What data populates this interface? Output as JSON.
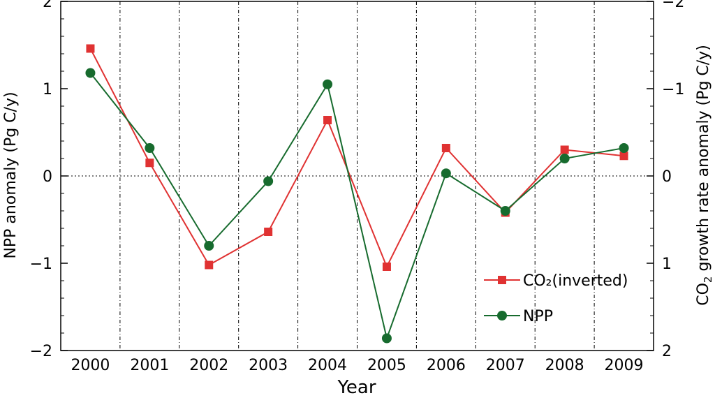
{
  "chart_data": {
    "type": "line",
    "xlabel": "Year",
    "ylabel_left": "NPP anomaly (Pg C/y)",
    "ylabel_right_prefix": "CO",
    "ylabel_right_sub": "2",
    "ylabel_right_suffix": " growth rate anomaly (Pg C/y)",
    "categories": [
      "2000",
      "2001",
      "2002",
      "2003",
      "2004",
      "2005",
      "2006",
      "2007",
      "2008",
      "2009"
    ],
    "ylim_left": [
      -2,
      2
    ],
    "yticks_left": [
      "2",
      "1",
      "0",
      "−1",
      "−2"
    ],
    "ylim_right_inverted": [
      2,
      -2
    ],
    "yticks_right": [
      "−2",
      "−1",
      "0",
      "1",
      "2"
    ],
    "grid": "dash-dot vertical lines between years; dotted horizontal line at 0",
    "legend_position": "bottom-right",
    "series": [
      {
        "name": "CO₂(inverted)",
        "color": "#e03232",
        "marker": "square",
        "values": [
          1.46,
          0.15,
          -1.02,
          -0.64,
          0.64,
          -1.04,
          0.32,
          -0.42,
          0.3,
          0.23
        ]
      },
      {
        "name": "NPP",
        "color": "#176b2e",
        "marker": "circle",
        "values": [
          1.18,
          0.32,
          -0.8,
          -0.06,
          1.05,
          -1.86,
          0.03,
          -0.4,
          0.2,
          0.32
        ]
      }
    ]
  }
}
